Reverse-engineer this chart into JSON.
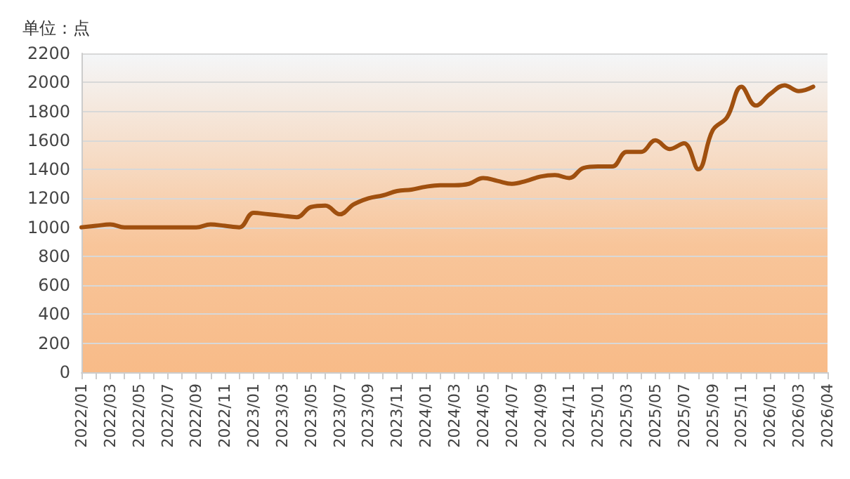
{
  "chart_data": {
    "type": "line",
    "ylabel": "单位：点",
    "categories": [
      "2022/01",
      null,
      "2022/03",
      null,
      "2022/05",
      null,
      "2022/07",
      null,
      "2022/09",
      null,
      "2022/11",
      null,
      "2023/01",
      null,
      "2023/03",
      null,
      "2023/05",
      null,
      "2023/07",
      null,
      "2023/09",
      null,
      "2023/11",
      null,
      "2024/01",
      null,
      "2024/03",
      null,
      "2024/05",
      null,
      "2024/07",
      null,
      "2024/09",
      null,
      "2024/11",
      null,
      "2025/01",
      null,
      "2025/03",
      null,
      "2025/05",
      null,
      "2025/07",
      null,
      "2025/09",
      null,
      "2025/11",
      null,
      "2026/01",
      null,
      "2026/03",
      null,
      "2026/04"
    ],
    "series": [
      {
        "color": "#a0500f",
        "values": [
          1000,
          1010,
          1020,
          1000,
          1000,
          1000,
          1000,
          1000,
          1000,
          1020,
          1010,
          1000,
          1100,
          1090,
          1080,
          1070,
          1140,
          1150,
          1090,
          1160,
          1200,
          1220,
          1250,
          1260,
          1280,
          1290,
          1290,
          1300,
          1340,
          1320,
          1300,
          1320,
          1350,
          1360,
          1340,
          1410,
          1420,
          1420,
          1520,
          1520,
          1600,
          1540,
          1580,
          1400,
          1670,
          1760,
          1970,
          1840,
          1920,
          1980,
          1940,
          1970,
          null
        ]
      }
    ],
    "ylim": [
      0,
      2200
    ],
    "yticks": [
      0,
      200,
      400,
      600,
      800,
      1000,
      1200,
      1400,
      1600,
      1800,
      2000,
      2200
    ],
    "grid": "y",
    "marker": "none",
    "line_style": "solid"
  }
}
